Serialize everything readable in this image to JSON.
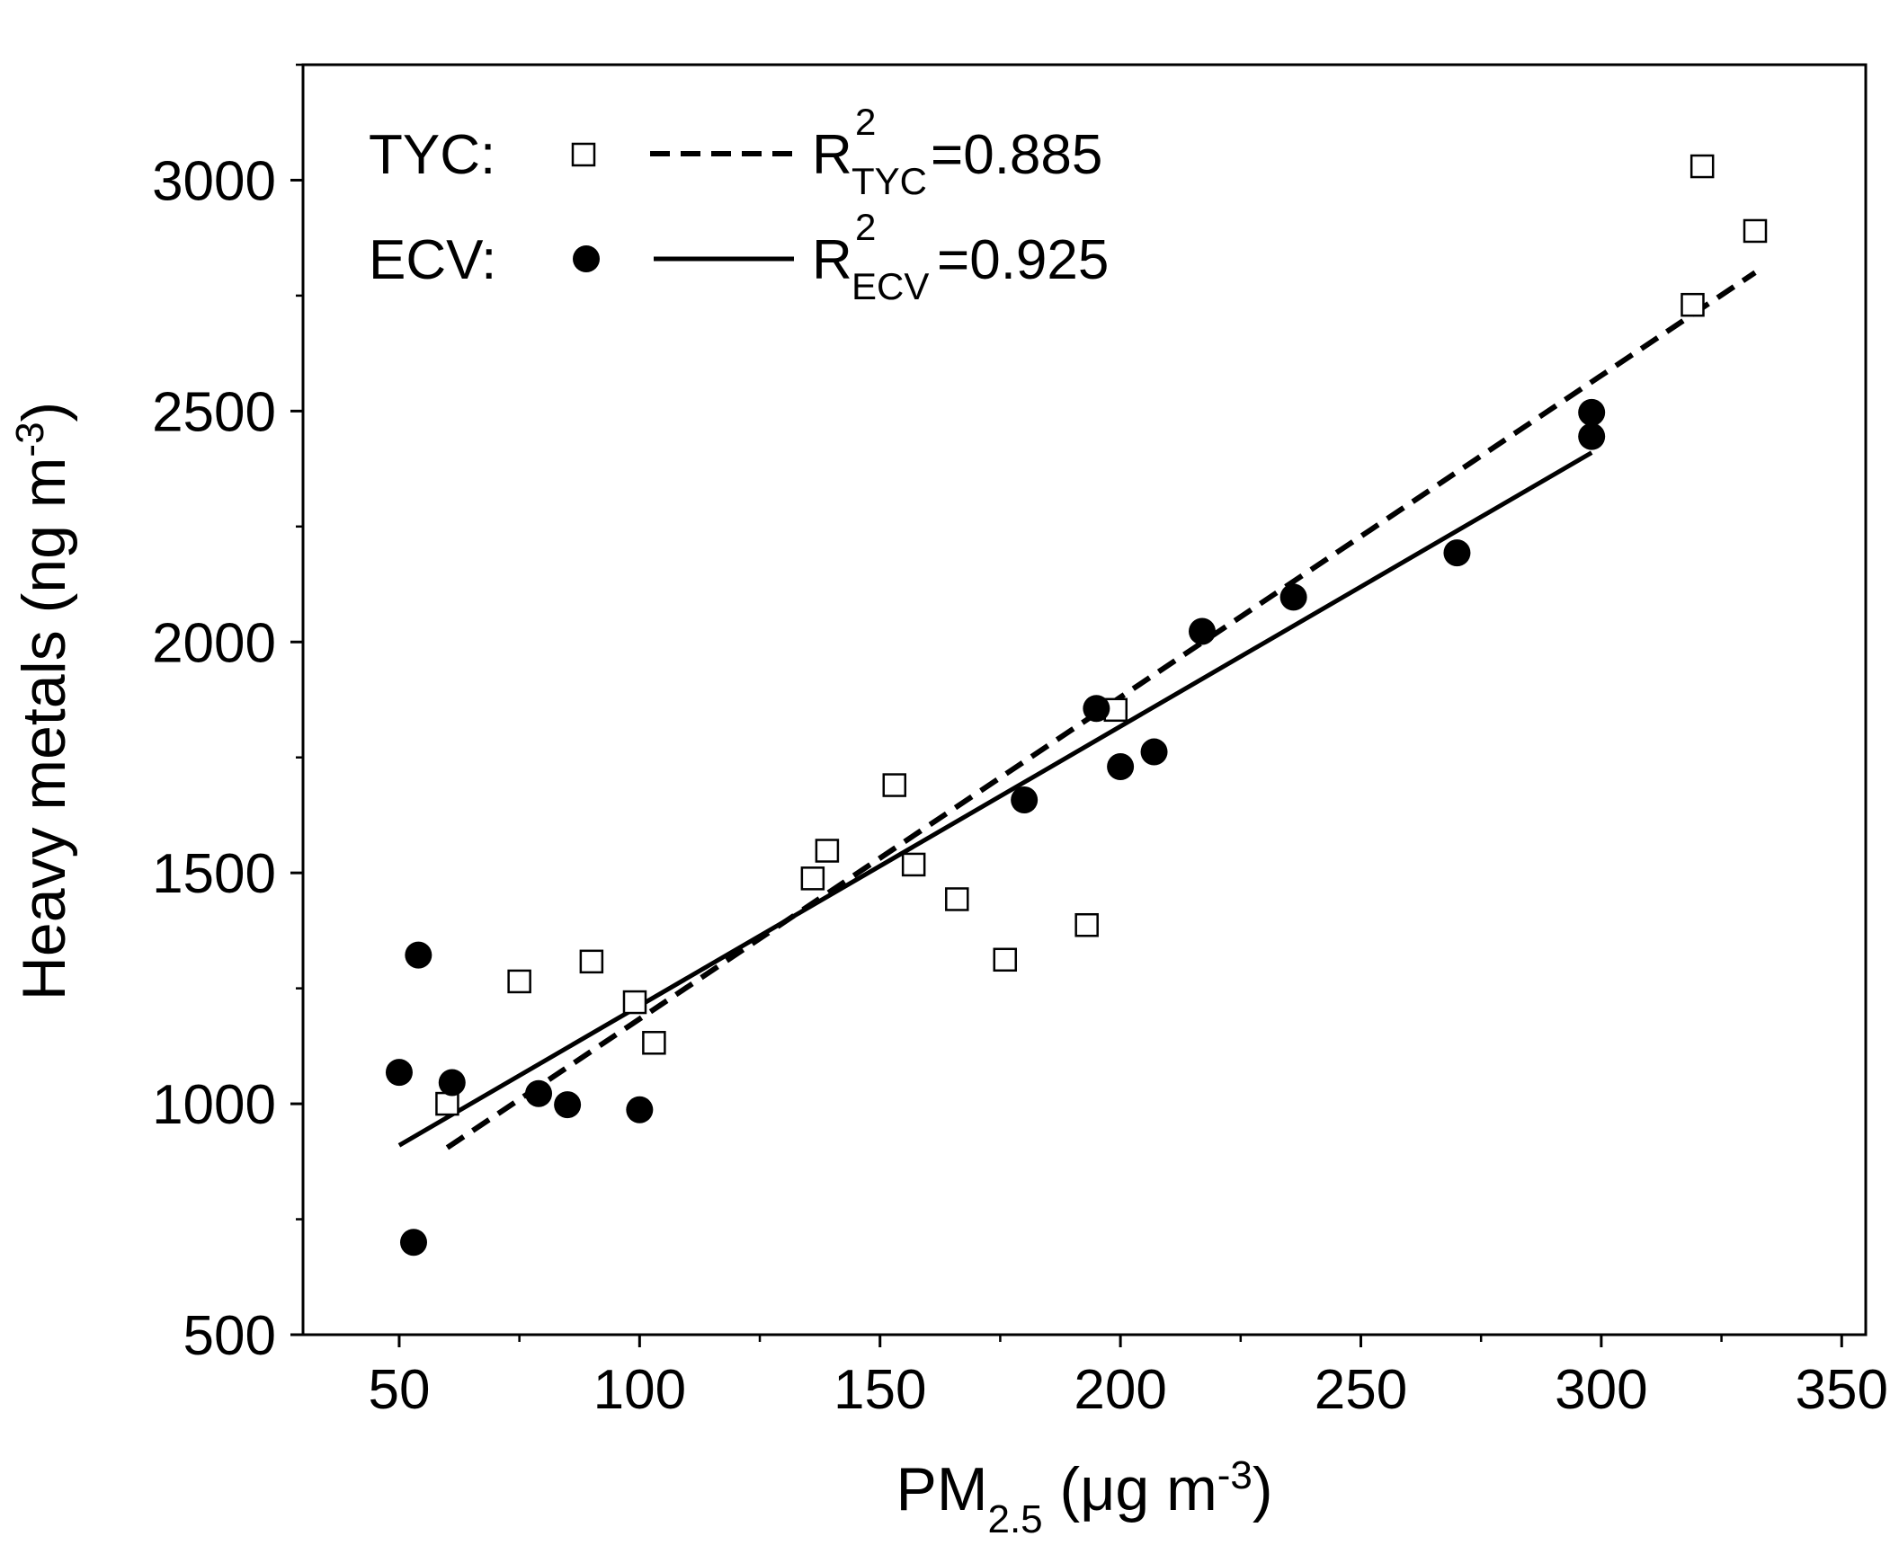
{
  "chart_data": {
    "type": "scatter",
    "title": "",
    "xlabel": {
      "main": "PM",
      "sub": "2.5",
      "unit_open": " (μg m",
      "unit_sup": "-3",
      "unit_close": ")"
    },
    "ylabel": {
      "main": "Heavy metals (ng m",
      "sup": "-3",
      "close": ")"
    },
    "xlim": [
      30,
      355
    ],
    "ylim": [
      500,
      3250
    ],
    "x_ticks": [
      50,
      100,
      150,
      200,
      250,
      300,
      350
    ],
    "y_ticks": [
      500,
      1000,
      1500,
      2000,
      2500,
      3000
    ],
    "x_tick_labels": [
      "50",
      "100",
      "150",
      "200",
      "250",
      "300",
      "350"
    ],
    "y_tick_labels": [
      "500",
      "1000",
      "1500",
      "2000",
      "2500",
      "3000"
    ],
    "series": [
      {
        "name": "TYC",
        "marker": "open-square",
        "points": [
          [
            60,
            1000
          ],
          [
            75,
            1265
          ],
          [
            90,
            1308
          ],
          [
            99,
            1220
          ],
          [
            103,
            1132
          ],
          [
            136,
            1488
          ],
          [
            139,
            1548
          ],
          [
            153,
            1690
          ],
          [
            157,
            1518
          ],
          [
            166,
            1443
          ],
          [
            176,
            1312
          ],
          [
            193,
            1387
          ],
          [
            199,
            1853
          ],
          [
            319,
            2730
          ],
          [
            321,
            3030
          ],
          [
            332,
            2890
          ]
        ],
        "fit": {
          "x": [
            60,
            332
          ],
          "y": [
            905,
            2800
          ],
          "style": "dashed"
        },
        "r2": "0.885"
      },
      {
        "name": "ECV",
        "marker": "filled-circle",
        "points": [
          [
            50,
            1068
          ],
          [
            53,
            700
          ],
          [
            54,
            1322
          ],
          [
            61,
            1046
          ],
          [
            79,
            1022
          ],
          [
            85,
            998
          ],
          [
            100,
            987
          ],
          [
            180,
            1658
          ],
          [
            195,
            1856
          ],
          [
            200,
            1730
          ],
          [
            207,
            1762
          ],
          [
            217,
            2023
          ],
          [
            236,
            2097
          ],
          [
            270,
            2193
          ],
          [
            298,
            2445
          ],
          [
            298,
            2497
          ]
        ],
        "fit": {
          "x": [
            50,
            298
          ],
          "y": [
            910,
            2410
          ],
          "style": "solid"
        },
        "r2": "0.925"
      }
    ],
    "legend": {
      "position": "top-left",
      "entries": [
        {
          "label": "TYC:",
          "r_main": "R",
          "r_sup": "2",
          "r_sub": "TYC",
          "r_value": "=0.885"
        },
        {
          "label": "ECV:",
          "r_main": "R",
          "r_sup": "2",
          "r_sub": "ECV",
          "r_value": "=0.925"
        }
      ]
    }
  }
}
